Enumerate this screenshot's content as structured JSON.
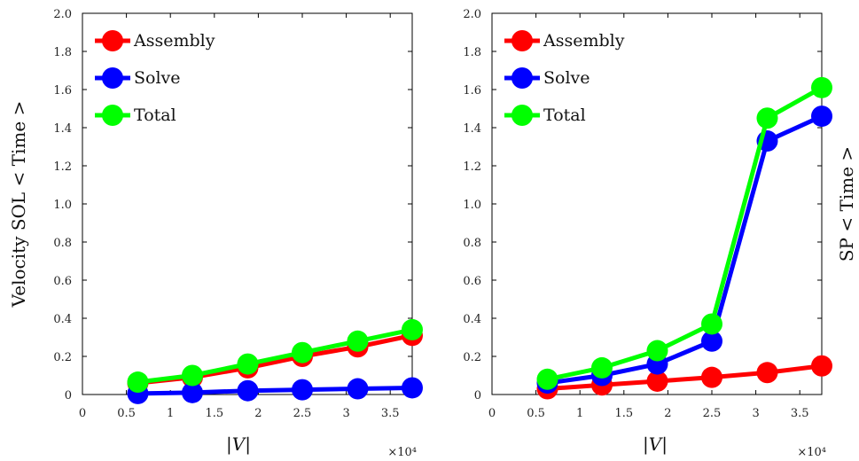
{
  "chart_data": [
    {
      "type": "line",
      "ylabel": "Velocity SOL < Time >",
      "xlabel": "|V|",
      "x_multiplier": "×10⁴",
      "xlim": [
        0,
        3.75
      ],
      "ylim": [
        0,
        2.0
      ],
      "x_ticks": [
        "0",
        "0.5",
        "1",
        "1.5",
        "2",
        "2.5",
        "3",
        "3.5"
      ],
      "y_ticks": [
        "0",
        "0.2",
        "0.4",
        "0.6",
        "0.8",
        "1.0",
        "1.2",
        "1.4",
        "1.6",
        "1.8",
        "2.0"
      ],
      "legend_position": "top-left",
      "x": [
        0.63,
        1.25,
        1.88,
        2.5,
        3.13,
        3.75
      ],
      "series": [
        {
          "name": "Assembly",
          "color": "#ff0000",
          "values": [
            0.06,
            0.09,
            0.14,
            0.2,
            0.25,
            0.31
          ]
        },
        {
          "name": "Solve",
          "color": "#0000ff",
          "values": [
            0.005,
            0.01,
            0.02,
            0.025,
            0.03,
            0.035
          ]
        },
        {
          "name": "Total",
          "color": "#00ff00",
          "values": [
            0.065,
            0.1,
            0.16,
            0.22,
            0.28,
            0.34
          ]
        }
      ]
    },
    {
      "type": "line",
      "ylabel": "SP < Time >",
      "xlabel": "|V|",
      "x_multiplier": "×10⁴",
      "xlim": [
        0,
        3.75
      ],
      "ylim": [
        0,
        2.0
      ],
      "x_ticks": [
        "0",
        "0.5",
        "1",
        "1.5",
        "2",
        "2.5",
        "3",
        "3.5"
      ],
      "y_ticks": [
        "0",
        "0.2",
        "0.4",
        "0.6",
        "0.8",
        "1.0",
        "1.2",
        "1.4",
        "1.6",
        "1.8",
        "2.0"
      ],
      "legend_position": "top-left",
      "x": [
        0.63,
        1.25,
        1.88,
        2.5,
        3.13,
        3.75
      ],
      "series": [
        {
          "name": "Assembly",
          "color": "#ff0000",
          "values": [
            0.03,
            0.05,
            0.07,
            0.09,
            0.115,
            0.15
          ]
        },
        {
          "name": "Solve",
          "color": "#0000ff",
          "values": [
            0.06,
            0.1,
            0.16,
            0.28,
            1.33,
            1.46
          ]
        },
        {
          "name": "Total",
          "color": "#00ff00",
          "values": [
            0.08,
            0.14,
            0.23,
            0.37,
            1.45,
            1.61
          ]
        }
      ]
    }
  ]
}
